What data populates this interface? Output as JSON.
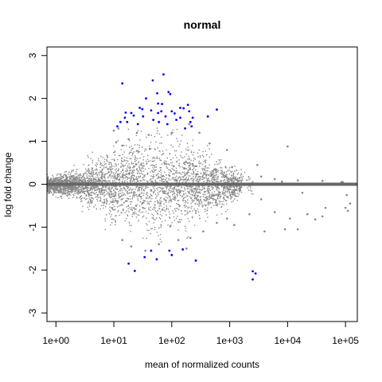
{
  "chart_data": {
    "type": "scatter",
    "title": "normal",
    "xlabel": "mean of normalized counts",
    "ylabel": "log fold change",
    "x_scale": "log10",
    "xlim": [
      0.7,
      160000
    ],
    "ylim": [
      -3.2,
      3.2
    ],
    "x_ticks": [
      1,
      10,
      100,
      1000,
      10000,
      100000
    ],
    "x_tick_labels": [
      "1e+00",
      "1e+01",
      "1e+02",
      "1e+03",
      "1e+04",
      "1e+05"
    ],
    "y_ticks": [
      -3,
      -2,
      -1,
      0,
      1,
      2,
      3
    ],
    "y_tick_labels": [
      "-3",
      "-2",
      "-1",
      "0",
      "1",
      "2",
      "3"
    ],
    "grid": false,
    "reference_line": {
      "y": 0,
      "color": "#666666"
    },
    "colors": {
      "non_significant": "#888888",
      "significant": "#0000ff"
    },
    "series": [
      {
        "points": [
          [
            10.0,
            1.25
          ],
          [
            11.0,
            0.98
          ],
          [
            12.0,
            1.3
          ],
          [
            14.0,
            0.9
          ],
          [
            18.0,
            1.05
          ],
          [
            25.0,
            1.2
          ],
          [
            40.0,
            1.15
          ],
          [
            100.0,
            1.2
          ],
          [
            200.0,
            1.4
          ],
          [
            300.0,
            1.2
          ],
          [
            450.0,
            0.95
          ],
          [
            900.0,
            0.8
          ],
          [
            3000.0,
            0.45
          ],
          [
            10000.0,
            0.88
          ],
          [
            1100.0,
            0.4
          ],
          [
            3500.0,
            0.18
          ],
          [
            6000.0,
            0.12
          ],
          [
            8000.0,
            0.06
          ],
          [
            15000.0,
            0.09
          ],
          [
            40000.0,
            0.08
          ],
          [
            85000.0,
            0.05
          ],
          [
            90000.0,
            0.05
          ],
          [
            600.0,
            -0.9
          ],
          [
            900.0,
            -0.8
          ],
          [
            1200.0,
            -0.95
          ],
          [
            2200.0,
            -0.7
          ],
          [
            3500.0,
            -0.35
          ],
          [
            4000.0,
            -1.1
          ],
          [
            6000.0,
            -0.65
          ],
          [
            9000.0,
            -1.05
          ],
          [
            11000.0,
            -0.8
          ],
          [
            15000.0,
            -1.05
          ],
          [
            18000.0,
            -0.2
          ],
          [
            22000.0,
            -0.7
          ],
          [
            30000.0,
            -0.82
          ],
          [
            40000.0,
            -0.75
          ],
          [
            45000.0,
            -0.55
          ],
          [
            100000.0,
            -0.55
          ],
          [
            110000.0,
            -0.62
          ],
          [
            120000.0,
            -0.45
          ],
          [
            105000.0,
            -0.25
          ],
          [
            14.0,
            -1.3
          ],
          [
            20.0,
            -1.45
          ],
          [
            35.0,
            -1.55
          ],
          [
            60.0,
            -1.4
          ],
          [
            130.0,
            -1.3
          ],
          [
            180.0,
            -1.5
          ],
          [
            210.0,
            -1.25
          ],
          [
            350.0,
            -1.1
          ]
        ]
      },
      {
        "points": [
          [
            14.0,
            2.35
          ],
          [
            47.0,
            2.42
          ],
          [
            72.0,
            2.56
          ],
          [
            88.0,
            2.15
          ],
          [
            94.0,
            2.1
          ],
          [
            56.0,
            2.12
          ],
          [
            36.0,
            2.0
          ],
          [
            58.0,
            1.88
          ],
          [
            68.0,
            1.87
          ],
          [
            28.0,
            1.78
          ],
          [
            31.0,
            1.75
          ],
          [
            44.0,
            1.72
          ],
          [
            58.0,
            1.66
          ],
          [
            66.0,
            1.7
          ],
          [
            100.0,
            1.7
          ],
          [
            112.0,
            1.65
          ],
          [
            140.0,
            1.78
          ],
          [
            160.0,
            1.77
          ],
          [
            190.0,
            1.85
          ],
          [
            200.0,
            1.7
          ],
          [
            230.0,
            1.55
          ],
          [
            210.0,
            1.45
          ],
          [
            600.0,
            1.74
          ],
          [
            420.0,
            1.58
          ],
          [
            16.0,
            1.67
          ],
          [
            20.0,
            1.66
          ],
          [
            15.5,
            1.55
          ],
          [
            17.0,
            1.45
          ],
          [
            22.0,
            1.6
          ],
          [
            32.0,
            1.58
          ],
          [
            48.0,
            1.5
          ],
          [
            60.0,
            1.45
          ],
          [
            78.0,
            1.58
          ],
          [
            84.0,
            1.4
          ],
          [
            120.0,
            1.5
          ],
          [
            140.0,
            1.55
          ],
          [
            170.0,
            1.3
          ],
          [
            220.0,
            1.35
          ],
          [
            13.0,
            1.45
          ],
          [
            11.5,
            1.35
          ],
          [
            26.0,
            1.4
          ],
          [
            18.0,
            -1.85
          ],
          [
            23.0,
            -2.02
          ],
          [
            44.0,
            -1.55
          ],
          [
            55.0,
            -1.75
          ],
          [
            34.0,
            -1.7
          ],
          [
            91.0,
            -1.55
          ],
          [
            100.0,
            -1.65
          ],
          [
            155.0,
            -1.52
          ],
          [
            260.0,
            -1.78
          ],
          [
            2500.0,
            -2.03
          ],
          [
            2800.0,
            -2.08
          ],
          [
            2500.0,
            -2.22
          ]
        ]
      }
    ]
  }
}
